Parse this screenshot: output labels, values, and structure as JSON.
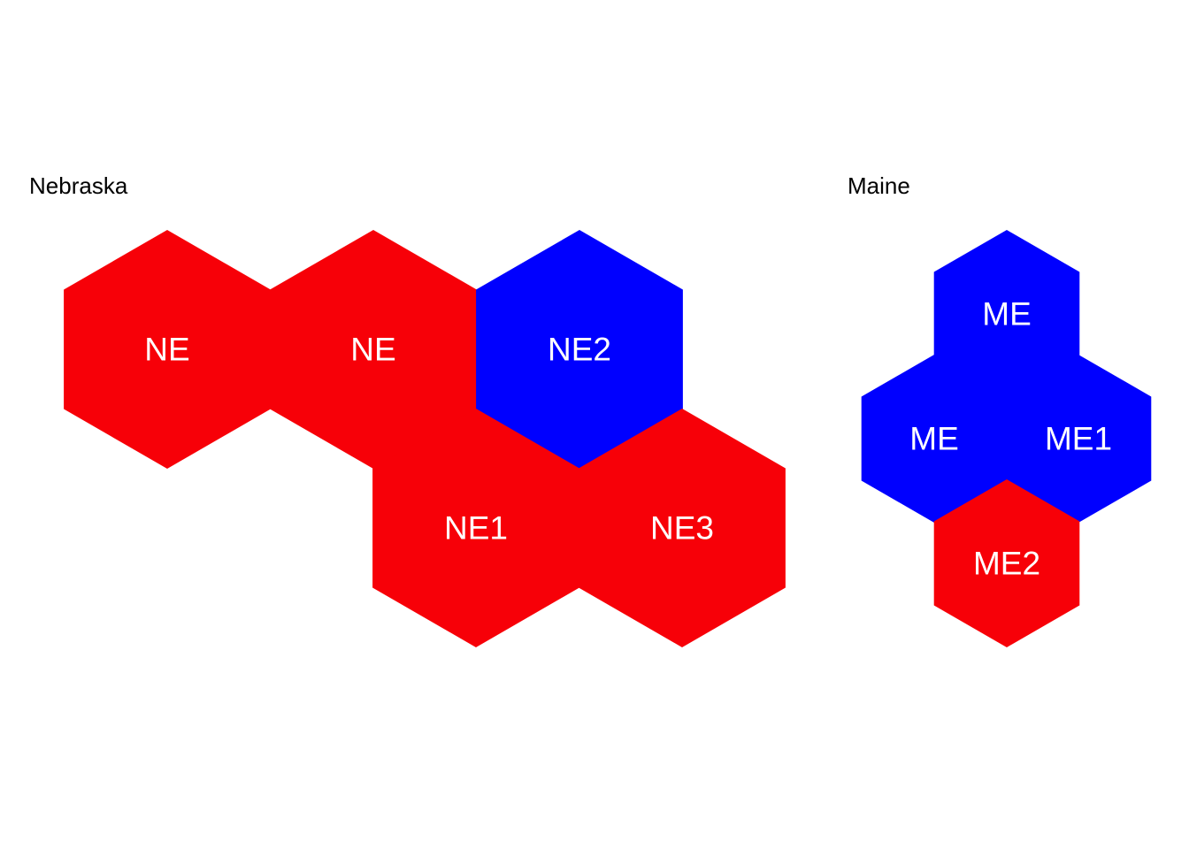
{
  "panels": {
    "nebraska": {
      "title": "Nebraska",
      "hexes": [
        {
          "label": "NE",
          "party": "red"
        },
        {
          "label": "NE",
          "party": "red"
        },
        {
          "label": "NE2",
          "party": "blue"
        },
        {
          "label": "NE1",
          "party": "red"
        },
        {
          "label": "NE3",
          "party": "red"
        }
      ]
    },
    "maine": {
      "title": "Maine",
      "hexes": [
        {
          "label": "ME",
          "party": "blue"
        },
        {
          "label": "ME",
          "party": "blue"
        },
        {
          "label": "ME1",
          "party": "blue"
        },
        {
          "label": "ME2",
          "party": "red"
        }
      ]
    }
  },
  "colors": {
    "red": "#f70008",
    "blue": "#0000ff",
    "label": "#ffffff"
  }
}
